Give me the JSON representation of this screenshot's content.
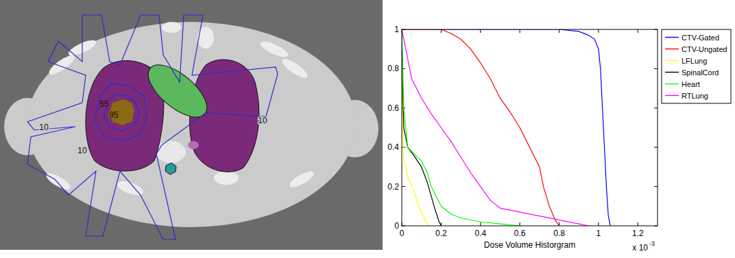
{
  "chart_data": {
    "type": "line",
    "xlabel": "Dose Volume Historgram",
    "x_multiplier": {
      "base": "x 10",
      "exponent": "-3"
    },
    "xlim": [
      0,
      1.3
    ],
    "xticks": [
      0,
      0.2,
      0.4,
      0.6,
      0.8,
      1,
      1.2
    ],
    "ylim": [
      0,
      1
    ],
    "yticks": [
      0,
      0.2,
      0.4,
      0.6,
      0.8,
      1
    ],
    "grid": false,
    "legend": "right",
    "series": [
      {
        "name": "CTV-Gated",
        "color": "#0000ff",
        "x": [
          0,
          0.8,
          0.9,
          0.95,
          0.98,
          1.0,
          1.01,
          1.02,
          1.03,
          1.04,
          1.05,
          1.06
        ],
        "values": [
          1,
          1,
          0.99,
          0.97,
          0.95,
          0.9,
          0.8,
          0.6,
          0.4,
          0.2,
          0.05,
          0
        ]
      },
      {
        "name": "CTV-Ungated",
        "color": "#ff0000",
        "x": [
          0,
          0.2,
          0.25,
          0.3,
          0.35,
          0.4,
          0.45,
          0.5,
          0.55,
          0.6,
          0.65,
          0.7,
          0.72,
          0.75,
          0.78,
          0.8
        ],
        "values": [
          1,
          1,
          0.98,
          0.95,
          0.9,
          0.83,
          0.75,
          0.65,
          0.58,
          0.5,
          0.4,
          0.3,
          0.2,
          0.1,
          0.03,
          0
        ]
      },
      {
        "name": "LFLung",
        "color": "#ffff00",
        "x": [
          0,
          0.005,
          0.01,
          0.03,
          0.06,
          0.08,
          0.1,
          0.12,
          0.13,
          0.14
        ],
        "values": [
          1,
          0.5,
          0.35,
          0.25,
          0.18,
          0.12,
          0.07,
          0.03,
          0.01,
          0
        ]
      },
      {
        "name": "SpinalCord",
        "color": "#000000",
        "x": [
          0,
          0.005,
          0.01,
          0.03,
          0.06,
          0.1,
          0.13,
          0.15,
          0.17,
          0.19,
          0.2
        ],
        "values": [
          1,
          0.7,
          0.5,
          0.4,
          0.36,
          0.3,
          0.22,
          0.15,
          0.08,
          0.02,
          0
        ]
      },
      {
        "name": "Heart",
        "color": "#00ff00",
        "x": [
          0,
          0.01,
          0.03,
          0.06,
          0.1,
          0.13,
          0.15,
          0.2,
          0.25,
          0.3,
          0.4,
          0.5,
          0.6
        ],
        "values": [
          1,
          0.6,
          0.4,
          0.37,
          0.33,
          0.27,
          0.2,
          0.1,
          0.06,
          0.04,
          0.02,
          0.01,
          0
        ]
      },
      {
        "name": "RTLung",
        "color": "#ff00ff",
        "x": [
          0,
          0.02,
          0.05,
          0.1,
          0.15,
          0.2,
          0.25,
          0.3,
          0.35,
          0.4,
          0.45,
          0.5,
          0.6,
          0.7,
          0.8,
          0.9,
          0.95
        ],
        "values": [
          1,
          0.9,
          0.75,
          0.65,
          0.57,
          0.5,
          0.43,
          0.35,
          0.27,
          0.2,
          0.13,
          0.09,
          0.07,
          0.05,
          0.03,
          0.01,
          0
        ]
      }
    ]
  },
  "image": {
    "isodose_labels": [
      "10",
      "55",
      "95",
      "10",
      "10"
    ]
  }
}
